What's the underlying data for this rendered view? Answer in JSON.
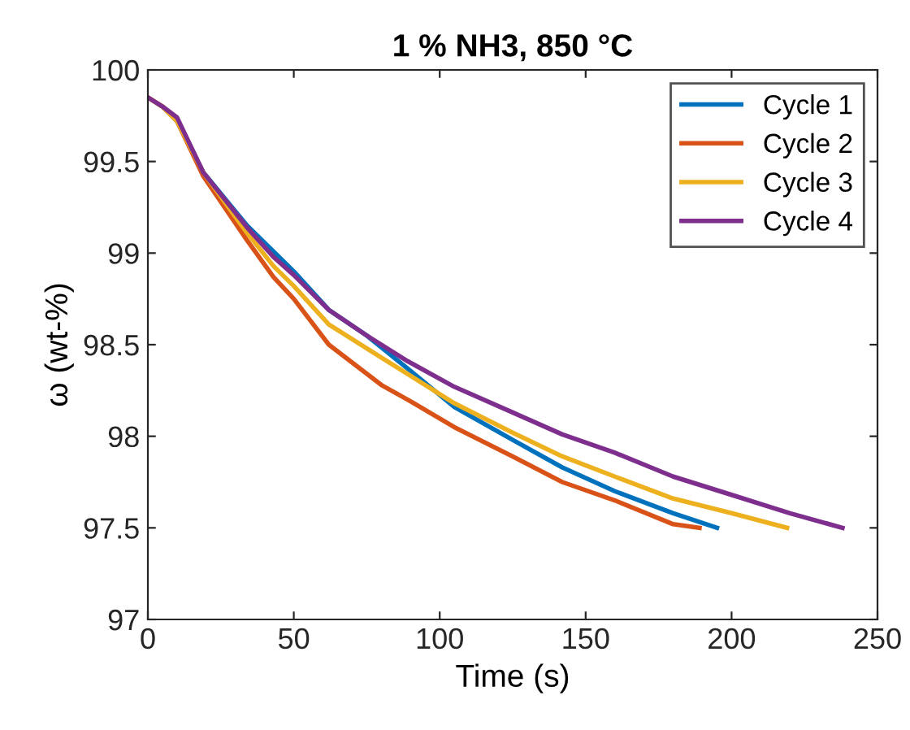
{
  "chart_data": {
    "type": "line",
    "title": "1 % NH3, 850 °C",
    "xlabel": "Time (s)",
    "ylabel": "ω (wt-%)",
    "xlim": [
      0,
      250
    ],
    "ylim": [
      97,
      100
    ],
    "xticks": [
      0,
      50,
      100,
      150,
      200,
      250
    ],
    "yticks": [
      97,
      97.5,
      98,
      98.5,
      99,
      99.5,
      100
    ],
    "grid": false,
    "legend": "top right",
    "marker": "none",
    "line_style": "solid",
    "series": [
      {
        "name": "Cycle 1",
        "color": "#0072bd",
        "x": [
          10,
          19,
          34,
          41,
          50,
          62,
          75,
          89,
          105,
          125,
          142,
          160,
          180,
          195
        ],
        "values": [
          99.72,
          99.44,
          99.15,
          99.04,
          98.9,
          98.69,
          98.55,
          98.37,
          98.16,
          97.98,
          97.83,
          97.7,
          97.58,
          97.5
        ]
      },
      {
        "name": "Cycle 2",
        "color": "#d95319",
        "x": [
          0,
          5,
          10,
          19,
          34,
          43,
          50,
          62,
          80,
          89,
          105,
          125,
          142,
          160,
          180,
          189
        ],
        "values": [
          99.85,
          99.8,
          99.72,
          99.42,
          99.07,
          98.87,
          98.75,
          98.5,
          98.28,
          98.2,
          98.05,
          97.89,
          97.75,
          97.65,
          97.52,
          97.5
        ]
      },
      {
        "name": "Cycle 3",
        "color": "#edb120",
        "x": [
          0,
          5,
          10,
          19,
          34,
          43,
          50,
          62,
          80,
          105,
          125,
          142,
          160,
          180,
          200,
          219
        ],
        "values": [
          99.85,
          99.8,
          99.72,
          99.44,
          99.11,
          98.93,
          98.82,
          98.61,
          98.43,
          98.18,
          98.02,
          97.89,
          97.78,
          97.66,
          97.58,
          97.5
        ]
      },
      {
        "name": "Cycle 4",
        "color": "#7e2f8e",
        "x": [
          0,
          5,
          10,
          19,
          34,
          43,
          50,
          62,
          75,
          89,
          105,
          125,
          142,
          160,
          180,
          200,
          220,
          238
        ],
        "values": [
          99.85,
          99.8,
          99.74,
          99.44,
          99.14,
          98.98,
          98.88,
          98.69,
          98.55,
          98.41,
          98.27,
          98.13,
          98.01,
          97.91,
          97.78,
          97.68,
          97.58,
          97.5
        ]
      }
    ]
  }
}
